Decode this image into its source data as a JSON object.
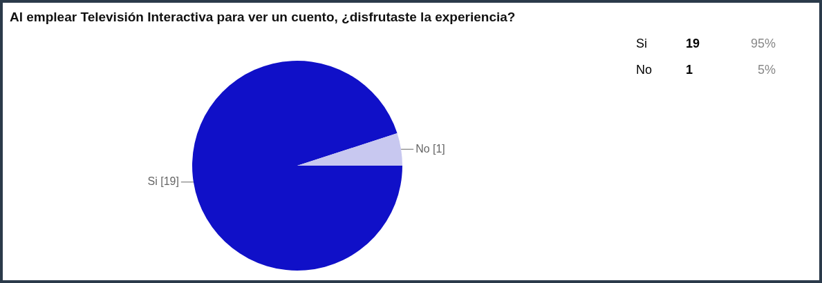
{
  "chart_data": {
    "type": "pie",
    "title": "Al emplear Televisión Interactiva para ver un cuento, ¿disfrutaste la experiencia?",
    "categories": [
      "Si",
      "No"
    ],
    "values": [
      19,
      1
    ],
    "value_labels": [
      "[19]",
      "[1]"
    ],
    "colors": [
      "#1010c8",
      "#c8c8f0"
    ],
    "annotations": [
      "Si",
      "19",
      "95%",
      "No",
      "1",
      "5%"
    ],
    "legend": false
  }
}
